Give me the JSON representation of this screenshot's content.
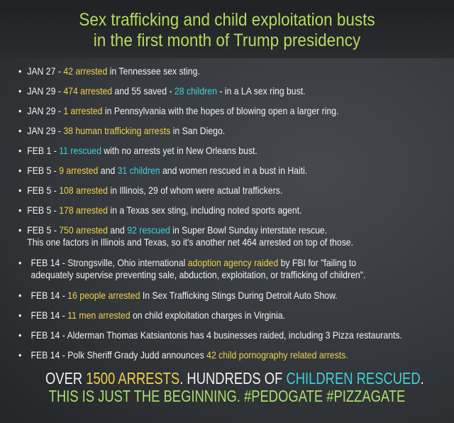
{
  "title": [
    "Sex trafficking and child exploitation busts",
    "in the first month of Trump presidency"
  ],
  "colors": {
    "title": "#b6dc5a",
    "highlight_yellow": "#f0d24a",
    "highlight_cyan": "#3fd1d6",
    "footer_green": "#a8e06a"
  },
  "items": [
    {
      "lines": [
        [
          [
            "w",
            "JAN 27 - "
          ],
          [
            "y",
            "42 arrested"
          ],
          [
            "w",
            " in Tennessee sex sting."
          ]
        ]
      ]
    },
    {
      "lines": [
        [
          [
            "w",
            "JAN 29 - "
          ],
          [
            "y",
            "474 arrested"
          ],
          [
            "w",
            " and 55 saved - "
          ],
          [
            "c",
            "28 children"
          ],
          [
            "w",
            " - in a LA sex ring bust."
          ]
        ]
      ]
    },
    {
      "lines": [
        [
          [
            "w",
            "JAN 29 - "
          ],
          [
            "y",
            "1 arrested"
          ],
          [
            "w",
            " in Pennsylvania with the hopes of blowing open a larger ring."
          ]
        ]
      ]
    },
    {
      "lines": [
        [
          [
            "w",
            "JAN 29 - "
          ],
          [
            "y",
            "38 human trafficking arrests"
          ],
          [
            "w",
            " in San Diego."
          ]
        ]
      ]
    },
    {
      "lines": [
        [
          [
            "w",
            "FEB 1 - "
          ],
          [
            "c",
            "11 rescued"
          ],
          [
            "w",
            " with no arrests yet in New Orleans bust."
          ]
        ]
      ]
    },
    {
      "lines": [
        [
          [
            "w",
            "FEB 5 - "
          ],
          [
            "y",
            "9 arrested"
          ],
          [
            "w",
            " and "
          ],
          [
            "c",
            "31 children"
          ],
          [
            "w",
            " and women rescued in a bust in Haiti."
          ]
        ]
      ]
    },
    {
      "lines": [
        [
          [
            "w",
            "FEB 5 - "
          ],
          [
            "y",
            "108 arrested"
          ],
          [
            "w",
            " in Illinois, 29 of whom were actual traffickers."
          ]
        ]
      ]
    },
    {
      "lines": [
        [
          [
            "w",
            "FEB 5 - "
          ],
          [
            "y",
            "178 arrested"
          ],
          [
            "w",
            " in a Texas sex sting, including noted sports agent."
          ]
        ]
      ]
    },
    {
      "lines": [
        [
          [
            "w",
            "FEB 5 - "
          ],
          [
            "y",
            "750 arrested"
          ],
          [
            "w",
            " and "
          ],
          [
            "c",
            "92 rescued"
          ],
          [
            "w",
            " in Super Bowl Sunday interstate rescue."
          ]
        ],
        [
          [
            "w",
            "This one factors in Illinois and Texas, so it's another net 464 arrested on top of those."
          ]
        ]
      ]
    },
    {
      "lines": [
        [
          [
            "w",
            "FEB 14 - Strongsville, Ohio international "
          ],
          [
            "y",
            "adoption agency raided"
          ],
          [
            "w",
            " by FBI for \"failing to"
          ]
        ],
        [
          [
            "w",
            "adequately supervise preventing sale, abduction, exploitation, or trafficking of children\"."
          ]
        ]
      ]
    },
    {
      "lines": [
        [
          [
            "w",
            "FEB 14 - "
          ],
          [
            "y",
            "16 people arrested"
          ],
          [
            "w",
            " In Sex Trafficking Stings During Detroit Auto Show."
          ]
        ]
      ]
    },
    {
      "lines": [
        [
          [
            "w",
            "FEB 14 - "
          ],
          [
            "y",
            "11 men arrested"
          ],
          [
            "w",
            " on child exploitation charges in Virginia."
          ]
        ]
      ]
    },
    {
      "lines": [
        [
          [
            "w",
            "FEB 14 - Alderman Thomas Katsiantonis has 4 businesses raided, including 3 Pizza restaurants."
          ]
        ]
      ]
    },
    {
      "lines": [
        [
          [
            "w",
            "FEB 14 - Polk Sheriff Grady Judd announces "
          ],
          [
            "y",
            "42 child pornography related arrests."
          ]
        ]
      ]
    }
  ],
  "footer": {
    "line1": [
      [
        "w",
        "OVER "
      ],
      [
        "y",
        "1500 ARRESTS"
      ],
      [
        "w",
        ". HUNDREDS OF "
      ],
      [
        "c",
        "CHILDREN RESCUED"
      ],
      [
        "w",
        "."
      ]
    ],
    "line2": [
      [
        "g",
        "THIS IS JUST THE BEGINNING. #PEDOGATE #PIZZAGATE"
      ]
    ]
  }
}
